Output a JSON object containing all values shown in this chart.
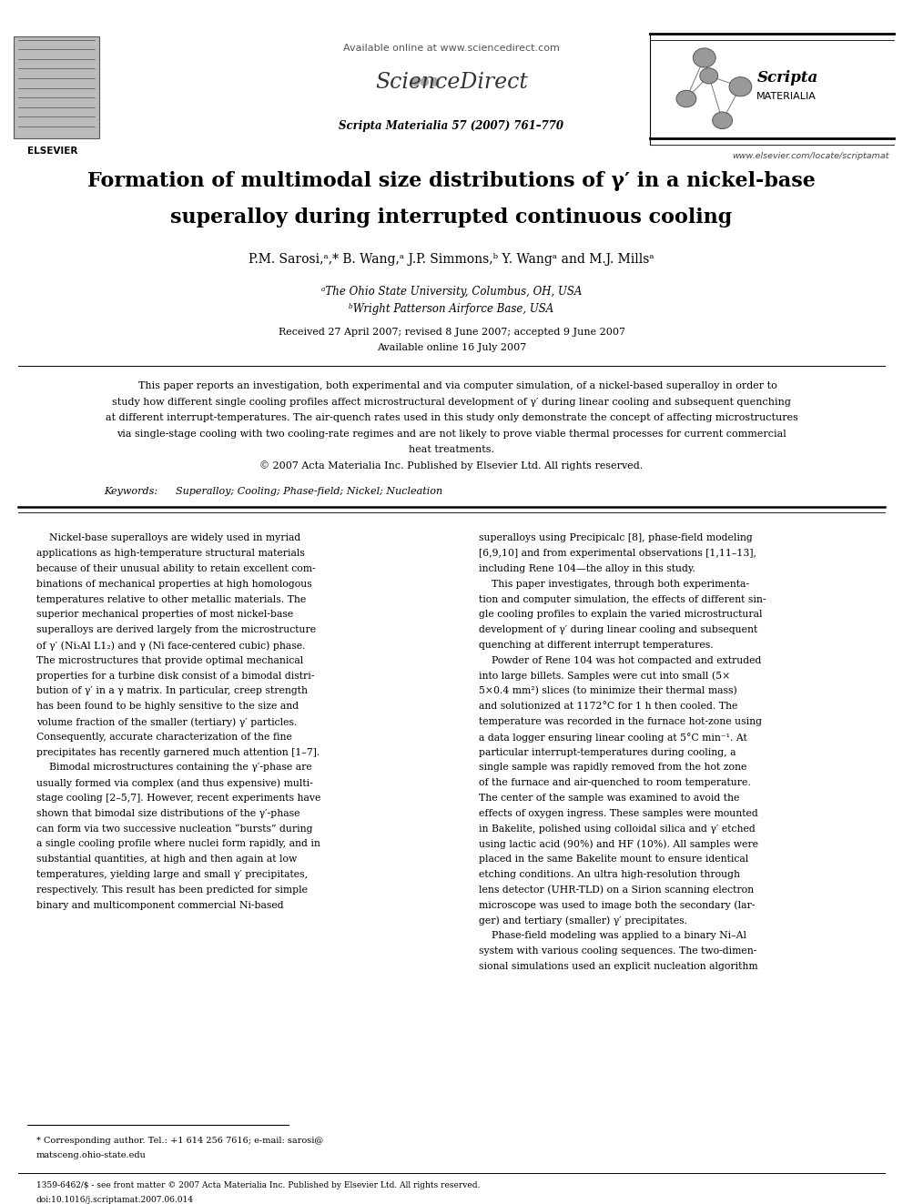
{
  "page_width": 9.92,
  "page_height": 13.23,
  "dpi": 100,
  "bg_color": "#ffffff",
  "title_line1": "Formation of multimodal size distributions of γ′ in a nickel-base",
  "title_line2": "superalloy during interrupted continuous cooling",
  "authors": "P.M. Sarosi,ᵃ,* B. Wang,ᵃ J.P. Simmons,ᵇ Y. Wangᵃ and M.J. Millsᵃ",
  "affil_a": "ᵃThe Ohio State University, Columbus, OH, USA",
  "affil_b": "ᵇWright Patterson Airforce Base, USA",
  "received": "Received 27 April 2007; revised 8 June 2007; accepted 9 June 2007",
  "available": "Available online 16 July 2007",
  "abstract_lines": [
    "    This paper reports an investigation, both experimental and via computer simulation, of a nickel-based superalloy in order to",
    "study how different single cooling profiles affect microstructural development of γ′ during linear cooling and subsequent quenching",
    "at different interrupt-temperatures. The air-quench rates used in this study only demonstrate the concept of affecting microstructures",
    "via single-stage cooling with two cooling-rate regimes and are not likely to prove viable thermal processes for current commercial",
    "heat treatments.",
    "© 2007 Acta Materialia Inc. Published by Elsevier Ltd. All rights reserved."
  ],
  "keywords": "Superalloy; Cooling; Phase-field; Nickel; Nucleation",
  "col1_lines": [
    "    Nickel-base superalloys are widely used in myriad",
    "applications as high-temperature structural materials",
    "because of their unusual ability to retain excellent com-",
    "binations of mechanical properties at high homologous",
    "temperatures relative to other metallic materials. The",
    "superior mechanical properties of most nickel-base",
    "superalloys are derived largely from the microstructure",
    "of γ′ (Ni₃Al L1₂) and γ (Ni face-centered cubic) phase.",
    "The microstructures that provide optimal mechanical",
    "properties for a turbine disk consist of a bimodal distri-",
    "bution of γ′ in a γ matrix. In particular, creep strength",
    "has been found to be highly sensitive to the size and",
    "volume fraction of the smaller (tertiary) γ′ particles.",
    "Consequently, accurate characterization of the fine",
    "precipitates has recently garnered much attention [1–7].",
    "    Bimodal microstructures containing the γ′-phase are",
    "usually formed via complex (and thus expensive) multi-",
    "stage cooling [2–5,7]. However, recent experiments have",
    "shown that bimodal size distributions of the γ′-phase",
    "can form via two successive nucleation “bursts” during",
    "a single cooling profile where nuclei form rapidly, and in",
    "substantial quantities, at high and then again at low",
    "temperatures, yielding large and small γ′ precipitates,",
    "respectively. This result has been predicted for simple",
    "binary and multicomponent commercial Ni-based"
  ],
  "col2_lines": [
    "superalloys using Precipicalc [8], phase-field modeling",
    "[6,9,10] and from experimental observations [1,11–13],",
    "including Rene 104—the alloy in this study.",
    "    This paper investigates, through both experimenta-",
    "tion and computer simulation, the effects of different sin-",
    "gle cooling profiles to explain the varied microstructural",
    "development of γ′ during linear cooling and subsequent",
    "quenching at different interrupt temperatures.",
    "    Powder of Rene 104 was hot compacted and extruded",
    "into large billets. Samples were cut into small (5×",
    "5×0.4 mm²) slices (to minimize their thermal mass)",
    "and solutionized at 1172°C for 1 h then cooled. The",
    "temperature was recorded in the furnace hot-zone using",
    "a data logger ensuring linear cooling at 5°C min⁻¹. At",
    "particular interrupt-temperatures during cooling, a",
    "single sample was rapidly removed from the hot zone",
    "of the furnace and air-quenched to room temperature.",
    "The center of the sample was examined to avoid the",
    "effects of oxygen ingress. These samples were mounted",
    "in Bakelite, polished using colloidal silica and γ′ etched",
    "using lactic acid (90%) and HF (10%). All samples were",
    "placed in the same Bakelite mount to ensure identical",
    "etching conditions. An ultra high-resolution through",
    "lens detector (UHR-TLD) on a Sirion scanning electron",
    "microscope was used to image both the secondary (lar-",
    "ger) and tertiary (smaller) γ′ precipitates.",
    "    Phase-field modeling was applied to a binary Ni–Al",
    "system with various cooling sequences. The two-dimen-",
    "sional simulations used an explicit nucleation algorithm"
  ],
  "footnote_lines": [
    "* Corresponding author. Tel.: +1 614 256 7616; e-mail: sarosi@",
    "matsceng.ohio-state.edu"
  ],
  "footer_left": "1359-6462/$ - see front matter © 2007 Acta Materialia Inc. Published by Elsevier Ltd. All rights reserved.",
  "footer_doi": "doi:10.1016/j.scriptamat.2007.06.014"
}
